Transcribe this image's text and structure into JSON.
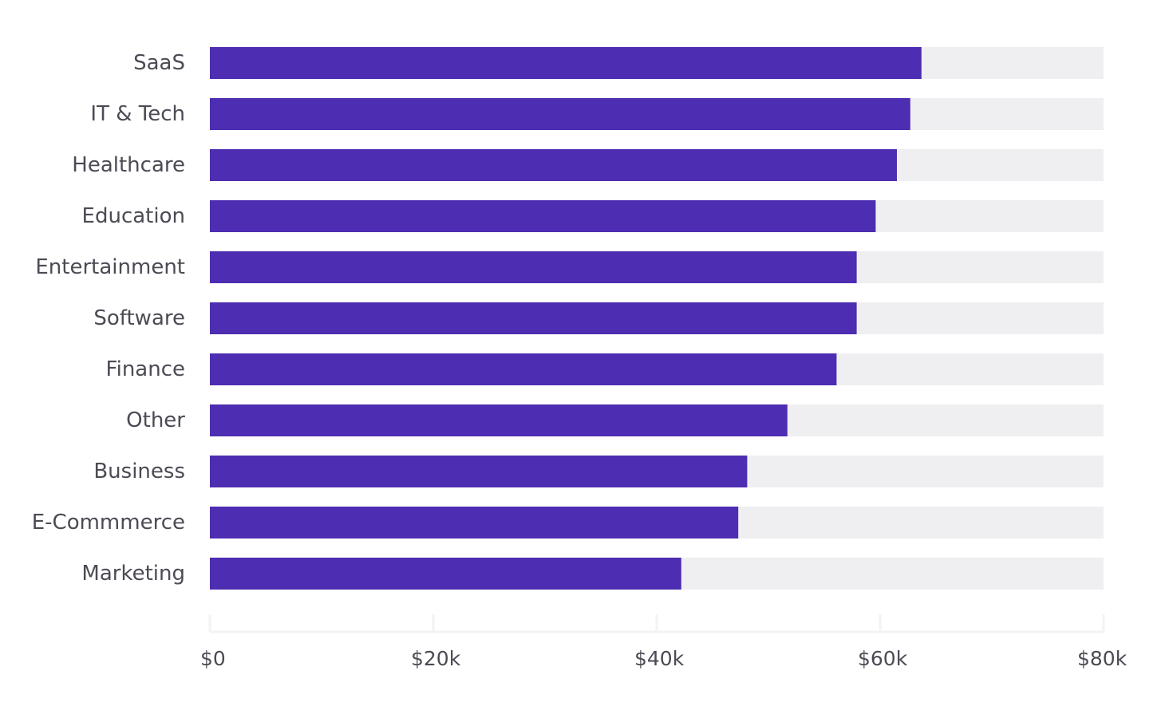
{
  "chart_data": {
    "type": "bar",
    "orientation": "horizontal",
    "categories": [
      "SaaS",
      "IT & Tech",
      "Healthcare",
      "Education",
      "Entertainment",
      "Software",
      "Finance",
      "Other",
      "Business",
      "E-Commmerce",
      "Marketing"
    ],
    "values": [
      63700,
      62700,
      61500,
      59600,
      57900,
      57900,
      56100,
      51700,
      48100,
      47300,
      42200
    ],
    "xlim": [
      0,
      80000
    ],
    "xticks": [
      0,
      20000,
      40000,
      60000,
      80000
    ],
    "xtick_labels": [
      "$0",
      "$20k",
      "$40k",
      "$60k",
      "$80k"
    ],
    "grid": false,
    "colors": {
      "bar": "#4d2db1",
      "track": "#efeff2",
      "axis": "#f3f3f5",
      "text": "#4b4b55"
    }
  }
}
